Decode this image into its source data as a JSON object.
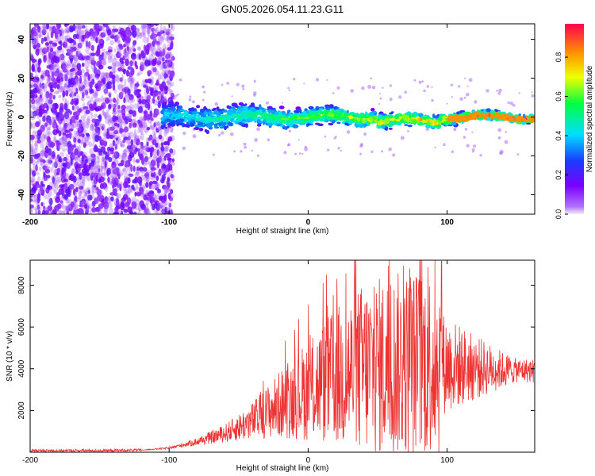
{
  "title": "GN05.2026.054.11.23.G11",
  "colors": {
    "frame": "#000000",
    "snr_line": "#ee3333"
  },
  "chart_data": [
    {
      "type": "heatmap",
      "title": "GN05.2026.054.11.23.G11",
      "xlabel": "Height of straight line (km)",
      "ylabel": "Frequency (Hz)",
      "xlim": [
        -200,
        163
      ],
      "ylim": [
        -50,
        48
      ],
      "xticks": [
        -200,
        -100,
        0,
        100
      ],
      "yticks": [
        -40,
        -20,
        0,
        20,
        40
      ],
      "colorbar": {
        "label": "Normalized spectral amplitude",
        "range": [
          0,
          0.97
        ],
        "ticks": [
          0.0,
          0.2,
          0.4,
          0.6,
          0.8
        ],
        "tick_labels": [
          "0.0",
          "0.2",
          "0.4",
          "0.6",
          "0.8"
        ],
        "colormap": "rainbow"
      },
      "description_series": [
        {
          "name": "noise region",
          "x_range": [
            -200,
            -100
          ],
          "freq_spread": 50,
          "amplitude": [
            0.05,
            0.25
          ]
        },
        {
          "name": "signal band",
          "x_range": [
            -105,
            163
          ],
          "center_freq": 0,
          "amplitude": [
            0.3,
            0.95
          ]
        }
      ]
    },
    {
      "type": "line",
      "xlabel": "Height of straight line (km)",
      "ylabel": "SNR (10 * v/v)",
      "xlim": [
        -200,
        163
      ],
      "ylim": [
        0,
        9200
      ],
      "xticks": [
        -200,
        -100,
        0,
        100
      ],
      "yticks": [
        2000,
        4000,
        6000,
        8000
      ],
      "envelope": {
        "x": [
          -200,
          -150,
          -120,
          -100,
          -80,
          -60,
          -40,
          -20,
          0,
          20,
          40,
          60,
          80,
          95,
          100,
          120,
          140,
          163
        ],
        "y": [
          80,
          80,
          100,
          200,
          500,
          900,
          1500,
          2300,
          3000,
          3600,
          4000,
          4200,
          4300,
          4300,
          4200,
          4050,
          3950,
          3900
        ]
      }
    }
  ]
}
